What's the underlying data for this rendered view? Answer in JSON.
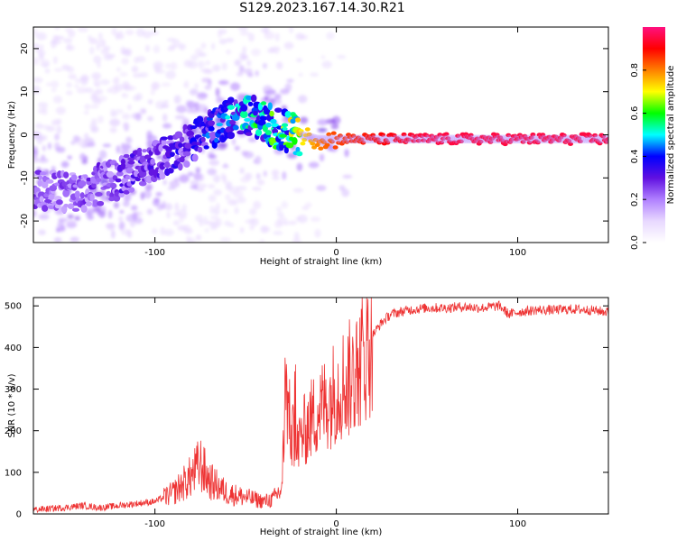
{
  "title": "S129.2023.167.14.30.R21",
  "colors": {
    "snr_line": "#ee3333",
    "frame": "#000000"
  },
  "chart_data": [
    {
      "type": "heatmap",
      "xlabel": "Height of straight line (km)",
      "ylabel": "Frequency (Hz)",
      "xlim": [
        -167,
        150
      ],
      "ylim": [
        -25,
        25
      ],
      "xticks": [
        -100,
        0,
        100
      ],
      "xtick_labels": [
        "-100",
        "0",
        "100"
      ],
      "yticks": [
        20,
        10,
        0,
        -10,
        -20
      ],
      "ytick_labels": [
        "20",
        "10",
        "0",
        "-10",
        "-20"
      ],
      "colorbar": {
        "label": "Normalized spectral amplitude",
        "range": [
          0,
          1
        ],
        "ticks": [
          0.0,
          0.2,
          0.4,
          0.6,
          0.8
        ],
        "tick_labels": [
          "0.0",
          "0.2",
          "0.4",
          "0.6",
          "0.8"
        ],
        "colormap": [
          "#ffffff",
          "#e8d8ff",
          "#b080ff",
          "#6010e0",
          "#0000ff",
          "#00ffff",
          "#00ff00",
          "#ffff00",
          "#ff8000",
          "#ff0000",
          "#ff1080"
        ]
      },
      "ridge": {
        "x": [
          -140,
          -120,
          -100,
          -80,
          -60,
          -50,
          -40,
          -30,
          -20,
          -10,
          0,
          50,
          100,
          150
        ],
        "freq": [
          -13,
          -10,
          -6,
          -2,
          4,
          5,
          3,
          1,
          0,
          -1,
          -1,
          -1,
          -1,
          -1
        ],
        "amplitude": [
          0.25,
          0.3,
          0.3,
          0.35,
          0.45,
          0.5,
          0.55,
          0.6,
          0.7,
          0.8,
          0.85,
          0.95,
          0.95,
          0.95
        ]
      }
    },
    {
      "type": "line",
      "xlabel": "Height of straight line (km)",
      "ylabel": "SNR (10 * v/v)",
      "xlim": [
        -167,
        150
      ],
      "ylim": [
        0,
        520
      ],
      "xticks": [
        -100,
        0,
        100
      ],
      "xtick_labels": [
        "-100",
        "0",
        "100"
      ],
      "yticks": [
        0,
        100,
        200,
        300,
        400,
        500
      ],
      "ytick_labels": [
        "0",
        "100",
        "200",
        "300",
        "400",
        "500"
      ],
      "series": [
        {
          "x": [
            -167,
            -150,
            -140,
            -130,
            -120,
            -110,
            -100,
            -90,
            -80,
            -75,
            -70,
            -60,
            -50,
            -40,
            -35,
            -30,
            -28,
            -25,
            -22,
            -20,
            -15,
            -10,
            -5,
            0,
            5,
            10,
            15,
            20,
            25,
            30,
            40,
            50,
            60,
            70,
            80,
            90,
            95,
            100,
            110,
            120,
            130,
            140,
            150
          ],
          "values": [
            10,
            15,
            20,
            15,
            20,
            25,
            30,
            50,
            90,
            120,
            80,
            50,
            40,
            30,
            35,
            60,
            300,
            200,
            150,
            180,
            220,
            250,
            270,
            300,
            320,
            330,
            380,
            430,
            460,
            480,
            490,
            495,
            495,
            498,
            495,
            500,
            480,
            485,
            490,
            490,
            492,
            490,
            485
          ]
        }
      ]
    }
  ]
}
